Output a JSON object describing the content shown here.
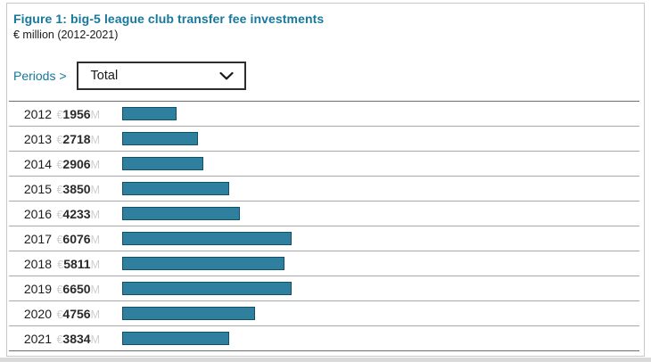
{
  "header": {
    "title": "Figure 1: big-5 league club transfer fee investments",
    "subtitle": "€ million (2012-2021)"
  },
  "controls": {
    "periods_label": "Periods >",
    "selected_period": "Total"
  },
  "icons": {
    "chevron_down": "chevron-down-icon"
  },
  "colors": {
    "accent_teal": "#16789c",
    "bar_fill": "#2f7f9e",
    "bar_border": "#10506a",
    "muted_unit_text": "#cfcfcf",
    "row_separator": "#a9a9a9"
  },
  "chart_data": {
    "type": "bar",
    "orientation": "horizontal",
    "title": "Figure 1: big-5 league club transfer fee investments",
    "subtitle": "€ million (2012-2021)",
    "xlabel": "",
    "ylabel": "",
    "categories": [
      "2012",
      "2013",
      "2014",
      "2015",
      "2016",
      "2017",
      "2018",
      "2019",
      "2020",
      "2021"
    ],
    "values": [
      1956,
      2718,
      2906,
      3850,
      4233,
      6076,
      5811,
      6650,
      4756,
      3834
    ],
    "value_prefix": "€",
    "value_suffix": "M",
    "xlim": [
      0,
      6650
    ],
    "grid": false,
    "legend": false
  }
}
